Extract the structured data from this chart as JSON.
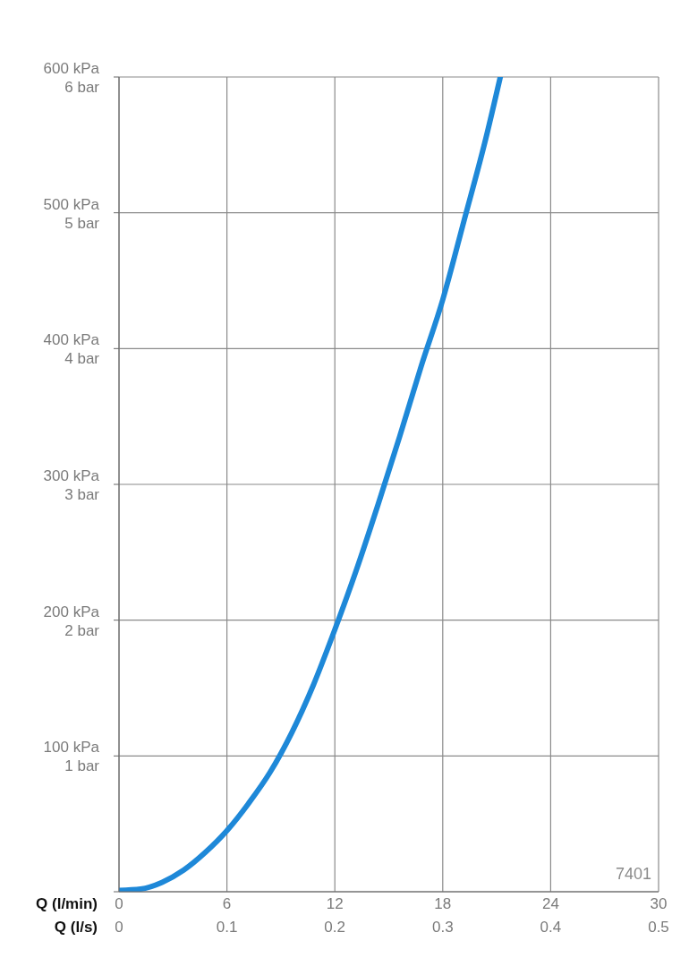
{
  "chart_data": {
    "type": "line",
    "xlabel": "Q (l/min)",
    "x2label": "Q (l/s)",
    "x": [
      0,
      1.2,
      2.4,
      3.6,
      4.8,
      6,
      7.2,
      8.4,
      9.6,
      10.8,
      12,
      13.2,
      14.4,
      15.6,
      16.8,
      18,
      19.2,
      20.4,
      21.2
    ],
    "series": [
      {
        "color": "#1e88d8",
        "values": [
          1,
          2,
          7,
          16,
          29,
          45,
          65,
          88,
          117,
          152,
          193,
          237,
          285,
          335,
          387,
          436,
          495,
          555,
          600
        ]
      }
    ],
    "xlim": [
      0,
      30
    ],
    "xticks": [
      0,
      6,
      12,
      18,
      24,
      30
    ],
    "x2lim": [
      0,
      0.5
    ],
    "x2ticks": [
      0,
      0.1,
      0.2,
      0.3,
      0.4,
      0.5
    ],
    "ylim": [
      0,
      600
    ],
    "yticks": [
      {
        "value": 0,
        "label": null
      },
      {
        "value": 100,
        "label": "100 kPa"
      },
      {
        "value": 200,
        "label": "200 kPa"
      },
      {
        "value": 300,
        "label": "300 kPa"
      },
      {
        "value": 400,
        "label": "400 kPa"
      },
      {
        "value": 500,
        "label": "500 kPa"
      },
      {
        "value": 600,
        "label": "600 kPa"
      }
    ],
    "y2lim": [
      0,
      6
    ],
    "y2ticks": [
      {
        "value": 0,
        "label": null
      },
      {
        "value": 1,
        "label": "1 bar"
      },
      {
        "value": 2,
        "label": "2 bar"
      },
      {
        "value": 3,
        "label": "3 bar"
      },
      {
        "value": 4,
        "label": "4 bar"
      },
      {
        "value": 5,
        "label": "5 bar"
      },
      {
        "value": 6,
        "label": "6 bar"
      }
    ],
    "grid": true,
    "marker": "none",
    "line_style": "solid",
    "annotations": [
      "7401"
    ]
  }
}
